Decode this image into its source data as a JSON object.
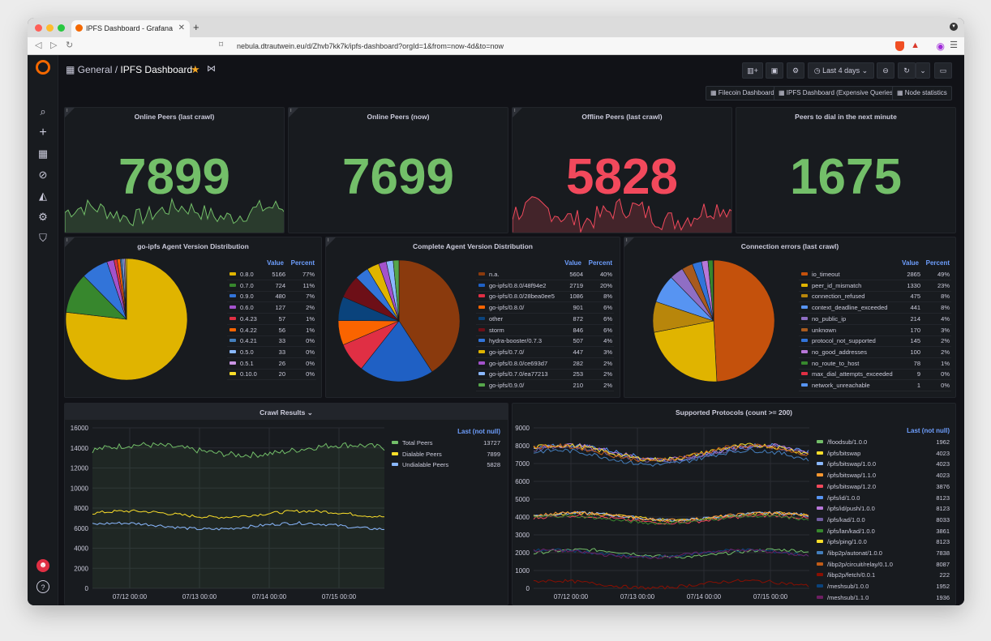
{
  "browser": {
    "tab_title": "IPFS Dashboard - Grafana",
    "url": "nebula.dtrautwein.eu/d/Zhvb7kk7k/ipfs-dashboard?orgId=1&from=now-4d&to=now"
  },
  "header": {
    "folder": "General",
    "separator": "/",
    "title": "IPFS Dashboard",
    "time_range": "Last 4 days"
  },
  "dashboard_links": [
    "Filecoin Dashboard",
    "IPFS Dashboard (Expensive Queries)",
    "Node statistics"
  ],
  "stats": [
    {
      "title": "Online Peers (last crawl)",
      "value": "7899",
      "color": "#73bf69"
    },
    {
      "title": "Online Peers (now)",
      "value": "7699",
      "color": "#73bf69"
    },
    {
      "title": "Offline Peers (last crawl)",
      "value": "5828",
      "color": "#f2495c"
    },
    {
      "title": "Peers to dial in the next minute",
      "value": "1675",
      "color": "#73bf69"
    }
  ],
  "pies": [
    {
      "title": "go-ipfs Agent Version Distribution",
      "header_value": "Value",
      "header_percent": "Percent",
      "items": [
        {
          "name": "0.8.0",
          "value": "5166",
          "percent": "77%",
          "color": "#e0b400"
        },
        {
          "name": "0.7.0",
          "value": "724",
          "percent": "11%",
          "color": "#37872d"
        },
        {
          "name": "0.9.0",
          "value": "480",
          "percent": "7%",
          "color": "#3274d9"
        },
        {
          "name": "0.6.0",
          "value": "127",
          "percent": "2%",
          "color": "#a352cc"
        },
        {
          "name": "0.4.23",
          "value": "57",
          "percent": "1%",
          "color": "#e02f44"
        },
        {
          "name": "0.4.22",
          "value": "56",
          "percent": "1%",
          "color": "#fa6400"
        },
        {
          "name": "0.4.21",
          "value": "33",
          "percent": "0%",
          "color": "#447ebc"
        },
        {
          "name": "0.5.0",
          "value": "33",
          "percent": "0%",
          "color": "#8ab8ff"
        },
        {
          "name": "0.5.1",
          "value": "26",
          "percent": "0%",
          "color": "#ca95e5"
        },
        {
          "name": "0.10.0",
          "value": "20",
          "percent": "0%",
          "color": "#fade2a"
        }
      ]
    },
    {
      "title": "Complete Agent Version Distribution",
      "header_value": "Value",
      "header_percent": "Percent",
      "items": [
        {
          "name": "n.a.",
          "value": "5604",
          "percent": "40%",
          "color": "#8a3a0d"
        },
        {
          "name": "go-ipfs/0.8.0/48f94e2",
          "value": "2719",
          "percent": "20%",
          "color": "#1f60c4"
        },
        {
          "name": "go-ipfs/0.8.0/28bea0ee5",
          "value": "1086",
          "percent": "8%",
          "color": "#e02f44"
        },
        {
          "name": "go-ipfs/0.8.0/",
          "value": "901",
          "percent": "6%",
          "color": "#fa6400"
        },
        {
          "name": "other",
          "value": "872",
          "percent": "6%",
          "color": "#0a437c"
        },
        {
          "name": "storm",
          "value": "846",
          "percent": "6%",
          "color": "#6d0f17"
        },
        {
          "name": "hydra-booster/0.7.3",
          "value": "507",
          "percent": "4%",
          "color": "#3274d9"
        },
        {
          "name": "go-ipfs/0.7.0/",
          "value": "447",
          "percent": "3%",
          "color": "#e0b400"
        },
        {
          "name": "go-ipfs/0.8.0/ce693d7",
          "value": "282",
          "percent": "2%",
          "color": "#a352cc"
        },
        {
          "name": "go-ipfs/0.7.0/ea77213",
          "value": "253",
          "percent": "2%",
          "color": "#8ab8ff"
        },
        {
          "name": "go-ipfs/0.9.0/",
          "value": "210",
          "percent": "2%",
          "color": "#56a64b"
        }
      ]
    },
    {
      "title": "Connection errors (last crawl)",
      "header_value": "Value",
      "header_percent": "Percent",
      "items": [
        {
          "name": "io_timeout",
          "value": "2865",
          "percent": "49%",
          "color": "#c4510c"
        },
        {
          "name": "peer_id_mismatch",
          "value": "1330",
          "percent": "23%",
          "color": "#e0b400"
        },
        {
          "name": "connection_refused",
          "value": "475",
          "percent": "8%",
          "color": "#b8860b"
        },
        {
          "name": "context_deadline_exceeded",
          "value": "441",
          "percent": "8%",
          "color": "#5794f2"
        },
        {
          "name": "no_public_ip",
          "value": "214",
          "percent": "4%",
          "color": "#8f6ec4"
        },
        {
          "name": "unknown",
          "value": "170",
          "percent": "3%",
          "color": "#a85a1e"
        },
        {
          "name": "protocol_not_supported",
          "value": "145",
          "percent": "2%",
          "color": "#3274d9"
        },
        {
          "name": "no_good_addresses",
          "value": "100",
          "percent": "2%",
          "color": "#b877d9"
        },
        {
          "name": "no_route_to_host",
          "value": "78",
          "percent": "1%",
          "color": "#37872d"
        },
        {
          "name": "max_dial_attempts_exceeded",
          "value": "9",
          "percent": "0%",
          "color": "#e02f44"
        },
        {
          "name": "network_unreachable",
          "value": "1",
          "percent": "0%",
          "color": "#5794f2"
        }
      ]
    }
  ],
  "crawl_results": {
    "title": "Crawl Results",
    "legend_header": "Last (not null)",
    "y_ticks": [
      "16000",
      "14000",
      "12000",
      "10000",
      "8000",
      "6000",
      "4000",
      "2000",
      "0"
    ],
    "x_ticks": [
      "07/12 00:00",
      "07/13 00:00",
      "07/14 00:00",
      "07/15 00:00"
    ],
    "series": [
      {
        "name": "Total Peers",
        "value": "13727",
        "color": "#73bf69"
      },
      {
        "name": "Dialable Peers",
        "value": "7899",
        "color": "#fade2a"
      },
      {
        "name": "Undialable Peers",
        "value": "5828",
        "color": "#8ab8ff"
      }
    ]
  },
  "protocols": {
    "title": "Supported Protocols (count >= 200)",
    "legend_header": "Last (not null)",
    "y_ticks": [
      "9000",
      "8000",
      "7000",
      "6000",
      "5000",
      "4000",
      "3000",
      "2000",
      "1000",
      "0"
    ],
    "x_ticks": [
      "07/12 00:00",
      "07/13 00:00",
      "07/14 00:00",
      "07/15 00:00"
    ],
    "series": [
      {
        "name": "/floodsub/1.0.0",
        "value": "1962",
        "color": "#73bf69"
      },
      {
        "name": "/ipfs/bitswap",
        "value": "4023",
        "color": "#fade2a"
      },
      {
        "name": "/ipfs/bitswap/1.0.0",
        "value": "4023",
        "color": "#8ab8ff"
      },
      {
        "name": "/ipfs/bitswap/1.1.0",
        "value": "4023",
        "color": "#ff9830"
      },
      {
        "name": "/ipfs/bitswap/1.2.0",
        "value": "3876",
        "color": "#f2495c"
      },
      {
        "name": "/ipfs/id/1.0.0",
        "value": "8123",
        "color": "#5794f2"
      },
      {
        "name": "/ipfs/id/push/1.0.0",
        "value": "8123",
        "color": "#b877d9"
      },
      {
        "name": "/ipfs/kad/1.0.0",
        "value": "8033",
        "color": "#705da0"
      },
      {
        "name": "/ipfs/lan/kad/1.0.0",
        "value": "3861",
        "color": "#37872d"
      },
      {
        "name": "/ipfs/ping/1.0.0",
        "value": "8123",
        "color": "#fade2a"
      },
      {
        "name": "/libp2p/autonat/1.0.0",
        "value": "7838",
        "color": "#447ebc"
      },
      {
        "name": "/libp2p/circuit/relay/0.1.0",
        "value": "8087",
        "color": "#c15c17"
      },
      {
        "name": "/libp2p/fetch/0.0.1",
        "value": "222",
        "color": "#890f02"
      },
      {
        "name": "/meshsub/1.0.0",
        "value": "1952",
        "color": "#0a437c"
      },
      {
        "name": "/meshsub/1.1.0",
        "value": "1936",
        "color": "#6d1f62"
      }
    ]
  }
}
